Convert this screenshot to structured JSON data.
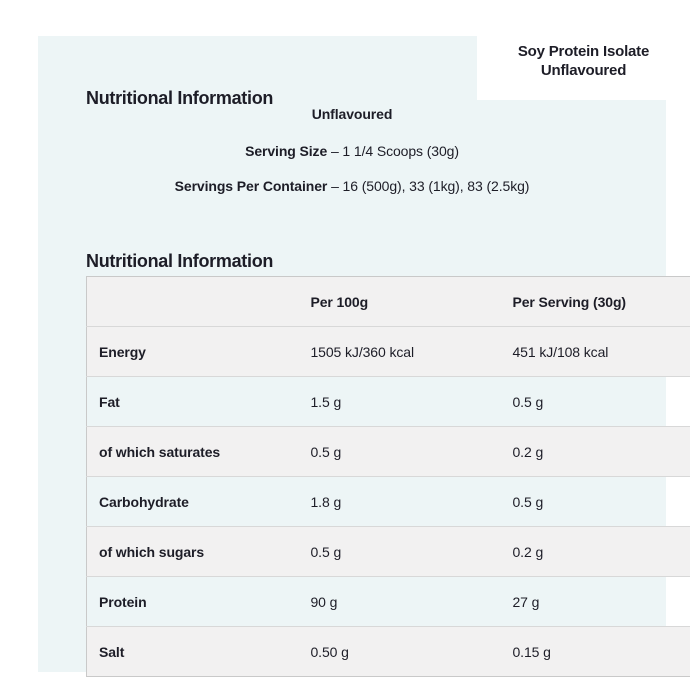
{
  "page": {
    "title": "Nutritional Information",
    "product_label": {
      "line1": "Soy Protein Isolate",
      "line2": "Unflavoured"
    }
  },
  "serving_info": {
    "flavour": "Unflavoured",
    "serving_size_label": "Serving Size",
    "serving_size_value": "– 1 1/4 Scoops (30g)",
    "servings_per_container_label": "Servings Per Container",
    "servings_per_container_value": "– 16 (500g), 33 (1kg), 83 (2.5kg)"
  },
  "table": {
    "title": "Nutritional Information",
    "columns": [
      "",
      "Per 100g",
      "Per Serving (30g)"
    ],
    "rows": [
      {
        "label": "Energy",
        "per_100g": "1505 kJ/360 kcal",
        "per_serving": "451 kJ/108 kcal"
      },
      {
        "label": "Fat",
        "per_100g": "1.5 g",
        "per_serving": "0.5 g"
      },
      {
        "label": "of which saturates",
        "per_100g": "0.5 g",
        "per_serving": "0.2 g"
      },
      {
        "label": "Carbohydrate",
        "per_100g": "1.8 g",
        "per_serving": "0.5 g"
      },
      {
        "label": "of which sugars",
        "per_100g": "0.5 g",
        "per_serving": "0.2 g"
      },
      {
        "label": "Protein",
        "per_100g": "90 g",
        "per_serving": "27 g"
      },
      {
        "label": "Salt",
        "per_100g": "0.50 g",
        "per_serving": "0.15 g"
      }
    ]
  },
  "colors": {
    "card_background": "#edf5f6",
    "stripe_background": "#f2f1f1",
    "row_border": "#d8d8d8",
    "table_border": "#c9c9c9",
    "text": "#1d1d27",
    "page_background": "#ffffff"
  }
}
